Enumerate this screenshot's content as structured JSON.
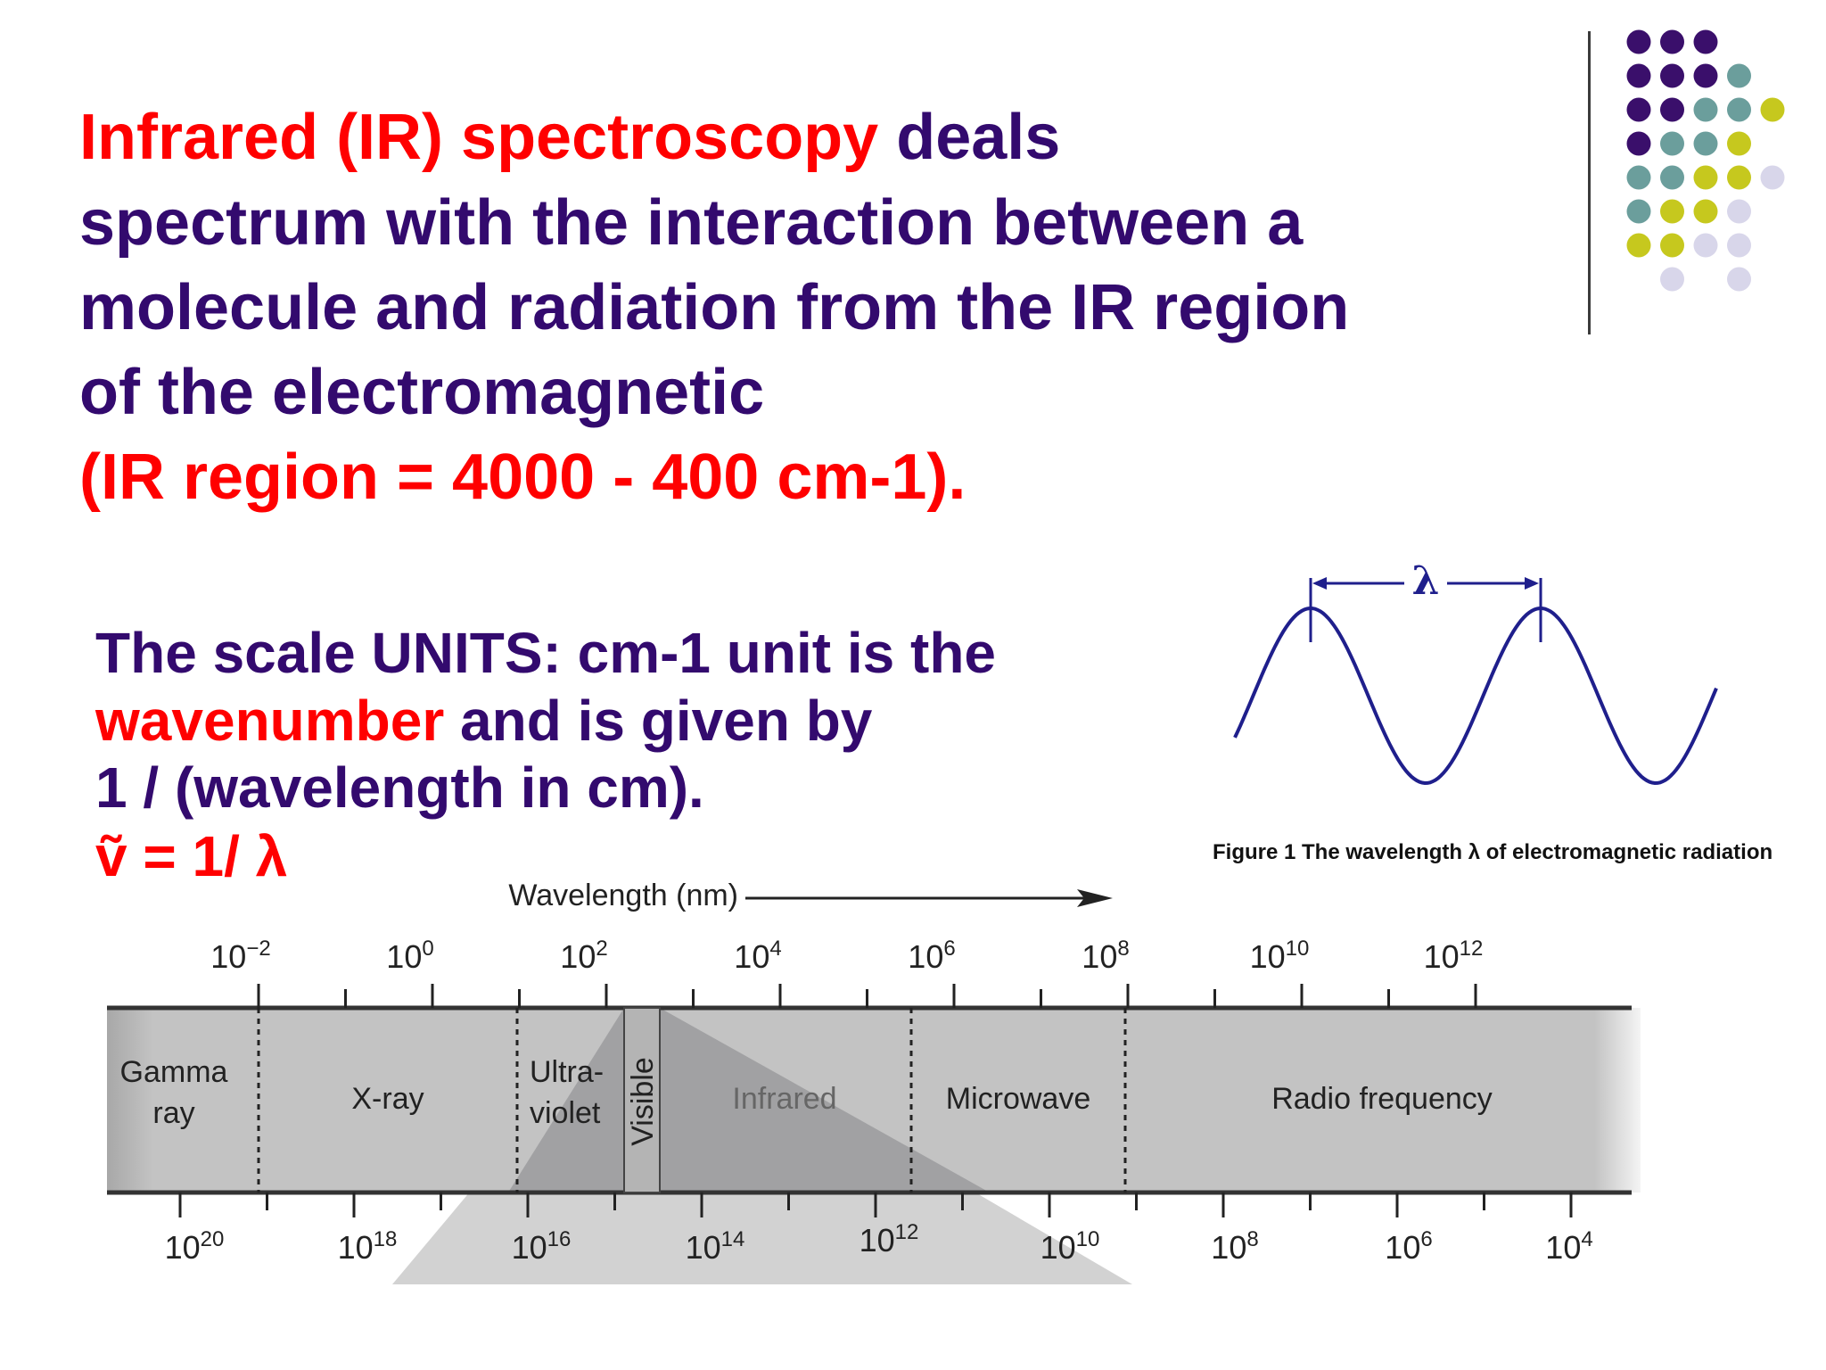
{
  "slide": {
    "title_lines": [
      {
        "parts": [
          {
            "text": "Infrared (IR) spectroscopy",
            "color": "red"
          },
          {
            "text": " deals",
            "color": "purple"
          }
        ]
      },
      {
        "parts": [
          {
            "text": "spectrum with the interaction between a",
            "color": "purple"
          }
        ]
      },
      {
        "parts": [
          {
            "text": "molecule and radiation from the IR region",
            "color": "purple"
          }
        ]
      },
      {
        "parts": [
          {
            "text": "of the electromagnetic",
            "color": "purple"
          }
        ]
      },
      {
        "parts": [
          {
            "text": "(IR region = 4000 - 400 cm-1).",
            "color": "red"
          }
        ]
      }
    ],
    "units_lines": [
      {
        "parts": [
          {
            "text": "The scale UNITS:  cm-1 unit is the",
            "color": "purple"
          }
        ]
      },
      {
        "parts": [
          {
            "text": "wavenumber",
            "color": "red"
          },
          {
            "text": " and is given by",
            "color": "purple"
          }
        ]
      },
      {
        "parts": [
          {
            "text": "1 / (wavelength in cm).",
            "color": "purple"
          }
        ]
      },
      {
        "parts": [
          {
            "text": "ṽ  = 1/ λ",
            "color": "red"
          }
        ]
      }
    ],
    "colors": {
      "red": "#ff0000",
      "purple": "#330a6e",
      "dot_purple": "#3a0f6b",
      "dot_teal": "#6b9e9c",
      "dot_olive": "#c6c81e",
      "dot_lavender": "#d8d6ea",
      "wave": "#1f1f8c"
    }
  },
  "wave_figure": {
    "lambda_label": "λ",
    "caption": "Figure 1 The wavelength λ of electromagnetic radiation"
  },
  "spectrum": {
    "axis_title": "Wavelength (nm)",
    "top_ticks": [
      "10",
      "10",
      "10",
      "10",
      "10",
      "10",
      "10",
      "10"
    ],
    "top_exponents": [
      "−2",
      "0",
      "2",
      "4",
      "6",
      "8",
      "10",
      "12"
    ],
    "bottom_ticks": [
      "10",
      "10",
      "10",
      "10",
      "10",
      "10",
      "10",
      "10",
      "10"
    ],
    "bottom_exponents": [
      "20",
      "18",
      "16",
      "14",
      "12",
      "10",
      "8",
      "6",
      "4"
    ],
    "regions": [
      {
        "label": [
          "Gamma",
          "ray"
        ]
      },
      {
        "label": [
          "X-ray"
        ]
      },
      {
        "label": [
          "Ultra-",
          "violet"
        ]
      },
      {
        "label": [
          "Visible"
        ]
      },
      {
        "label": [
          "Infrared"
        ]
      },
      {
        "label": [
          "Microwave"
        ]
      },
      {
        "label": [
          "Radio frequency"
        ]
      }
    ]
  }
}
